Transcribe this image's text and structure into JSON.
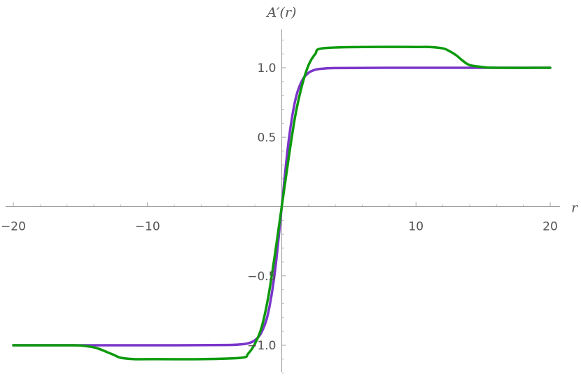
{
  "chart_data": {
    "type": "line",
    "title": "",
    "xlabel": "r",
    "ylabel": "A′(r)",
    "xlim": [
      -20,
      20
    ],
    "ylim": [
      -1.2,
      1.25
    ],
    "grid": false,
    "legend": "none",
    "x_ticks": [
      {
        "value": -20,
        "label": "−20"
      },
      {
        "value": -10,
        "label": "−10"
      },
      {
        "value": 10,
        "label": "10"
      },
      {
        "value": 20,
        "label": "20"
      }
    ],
    "y_ticks": [
      {
        "value": -1.0,
        "label": "−1.0"
      },
      {
        "value": -0.5,
        "label": "−0.5"
      },
      {
        "value": 0.5,
        "label": "0.5"
      },
      {
        "value": 1.0,
        "label": "1.0"
      }
    ],
    "x_minor_step": 2,
    "y_minor_step": 0.1,
    "series": [
      {
        "color": "#7b35c9",
        "x": [
          -20,
          -16,
          -12,
          -8,
          -4,
          -3,
          -2.5,
          -2,
          -1.5,
          -1,
          -0.5,
          0,
          0.5,
          1,
          1.5,
          2,
          2.5,
          3,
          4,
          8,
          12,
          16,
          20
        ],
        "y": [
          -1,
          -1,
          -1,
          -1,
          -0.998,
          -0.993,
          -0.986,
          -0.964,
          -0.905,
          -0.762,
          -0.462,
          0,
          0.462,
          0.762,
          0.905,
          0.964,
          0.986,
          0.993,
          0.998,
          1,
          1,
          1,
          1
        ]
      },
      {
        "color": "#0c9a0c",
        "x": [
          -20,
          -16,
          -15,
          -14,
          -13.5,
          -13,
          -12.5,
          -12,
          -11,
          -10,
          -6,
          -3,
          -2.5,
          -2,
          -1.5,
          -1,
          -0.5,
          0,
          0.5,
          1,
          1.5,
          2,
          2.5,
          3,
          6,
          10,
          11,
          12,
          12.5,
          13,
          13.5,
          14,
          15,
          16,
          20
        ],
        "y": [
          -1,
          -1,
          -1.002,
          -1.015,
          -1.03,
          -1.05,
          -1.07,
          -1.09,
          -1.1,
          -1.1,
          -1.1,
          -1.09,
          -1.06,
          -0.99,
          -0.87,
          -0.65,
          -0.34,
          0,
          0.34,
          0.65,
          0.87,
          1.02,
          1.1,
          1.14,
          1.15,
          1.15,
          1.15,
          1.14,
          1.12,
          1.09,
          1.05,
          1.02,
          1.005,
          1,
          1
        ]
      }
    ]
  }
}
